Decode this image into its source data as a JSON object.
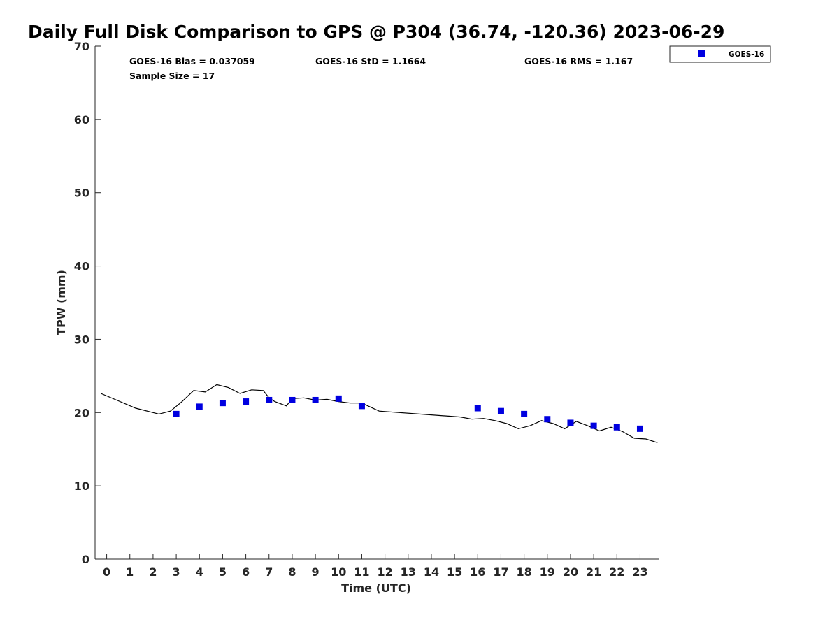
{
  "chart_data": {
    "type": "scatter",
    "title": "Daily Full Disk Comparison to GPS @ P304 (36.74, -120.36) 2023-06-29",
    "xlabel": "Time (UTC)",
    "ylabel": "TPW (mm)",
    "xlim": [
      -0.5,
      23.8
    ],
    "ylim": [
      0,
      70
    ],
    "x_ticks": [
      0,
      1,
      2,
      3,
      4,
      5,
      6,
      7,
      8,
      9,
      10,
      11,
      12,
      13,
      14,
      15,
      16,
      17,
      18,
      19,
      20,
      21,
      22,
      23
    ],
    "y_ticks": [
      0,
      10,
      20,
      30,
      40,
      50,
      60,
      70
    ],
    "grid": false,
    "legend_position": "top-right",
    "stats": {
      "bias": "GOES-16 Bias = 0.037059",
      "std": "GOES-16 StD = 1.1664",
      "rms": "GOES-16 RMS = 1.167",
      "sample_size": "Sample Size = 17"
    },
    "series": [
      {
        "name": "GOES-16",
        "kind": "scatter",
        "color": "#0000e0",
        "x": [
          3,
          4,
          5,
          6,
          7,
          8,
          9,
          10,
          11,
          16,
          17,
          18,
          19,
          20,
          21,
          22,
          23
        ],
        "y": [
          19.8,
          20.8,
          21.3,
          21.5,
          21.7,
          21.7,
          21.7,
          21.9,
          20.9,
          20.6,
          20.2,
          19.8,
          19.1,
          18.6,
          18.2,
          18.0,
          17.8
        ]
      },
      {
        "kind": "line",
        "color": "#000000",
        "x": [
          -0.25,
          0.5,
          1.25,
          2.25,
          2.75,
          3.25,
          3.75,
          4.25,
          4.75,
          5.25,
          5.75,
          6.25,
          6.75,
          7.0,
          7.25,
          7.75,
          8.0,
          8.5,
          9.0,
          9.5,
          10.0,
          10.5,
          11.0,
          11.75,
          15.25,
          15.75,
          16.25,
          16.75,
          17.25,
          17.75,
          18.25,
          18.75,
          19.25,
          19.75,
          20.25,
          20.75,
          21.25,
          21.75,
          22.25,
          22.75,
          23.25,
          23.75
        ],
        "y": [
          22.6,
          21.6,
          20.6,
          19.8,
          20.2,
          21.5,
          23.0,
          22.8,
          23.8,
          23.4,
          22.6,
          23.1,
          23.0,
          22.0,
          21.5,
          20.9,
          21.9,
          22.0,
          21.7,
          21.8,
          21.5,
          21.3,
          21.3,
          20.2,
          19.4,
          19.1,
          19.2,
          18.9,
          18.5,
          17.8,
          18.2,
          18.9,
          18.5,
          17.8,
          18.8,
          18.2,
          17.5,
          18.0,
          17.4,
          16.5,
          16.4,
          15.9
        ]
      }
    ]
  }
}
